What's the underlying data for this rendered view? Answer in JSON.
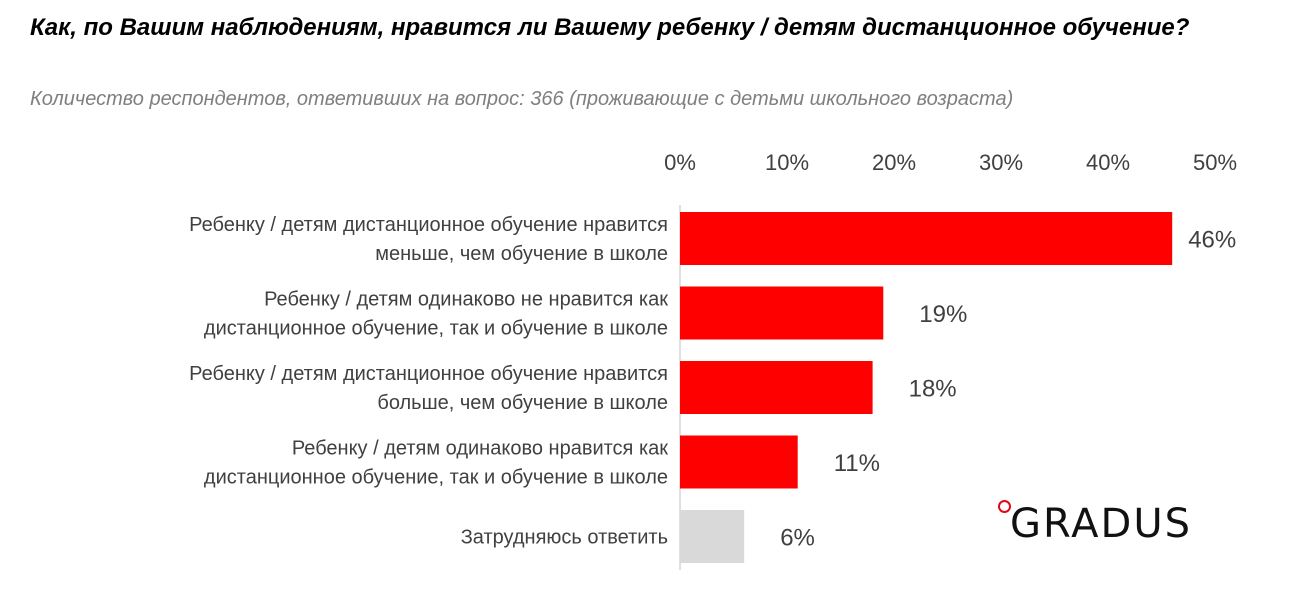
{
  "header": {
    "title": "Как, по Вашим наблюдениям, нравится ли Вашему ребенку / детям дистанционное обучение?",
    "subtitle": "Количество респондентов, ответивших на вопрос: 366 (проживающие с детьми школьного возраста)"
  },
  "brand": {
    "logo_text": "GRADUS",
    "accent": "#e30613"
  },
  "chart_data": {
    "type": "bar",
    "orientation": "horizontal",
    "xlim": [
      0,
      50
    ],
    "ticks": [
      "0%",
      "10%",
      "20%",
      "30%",
      "40%",
      "50%"
    ],
    "grid": false,
    "categories": [
      [
        "Ребенку / детям дистанционное обучение нравится",
        "меньше, чем обучение в школе"
      ],
      [
        "Ребенку / детям одинаково не нравится как",
        "дистанционное обучение, так и обучение в школе"
      ],
      [
        "Ребенку / детям дистанционное обучение нравится",
        "больше, чем обучение в школе"
      ],
      [
        "Ребенку / детям одинаково нравится как",
        "дистанционное обучение, так и обучение в школе"
      ],
      [
        "Затрудняюсь ответить"
      ]
    ],
    "values": [
      46,
      19,
      18,
      11,
      6
    ],
    "value_labels": [
      "46%",
      "19%",
      "18%",
      "11%",
      "6%"
    ],
    "colors": [
      "#ff0000",
      "#ff0000",
      "#ff0000",
      "#ff0000",
      "#d9d9d9"
    ]
  }
}
